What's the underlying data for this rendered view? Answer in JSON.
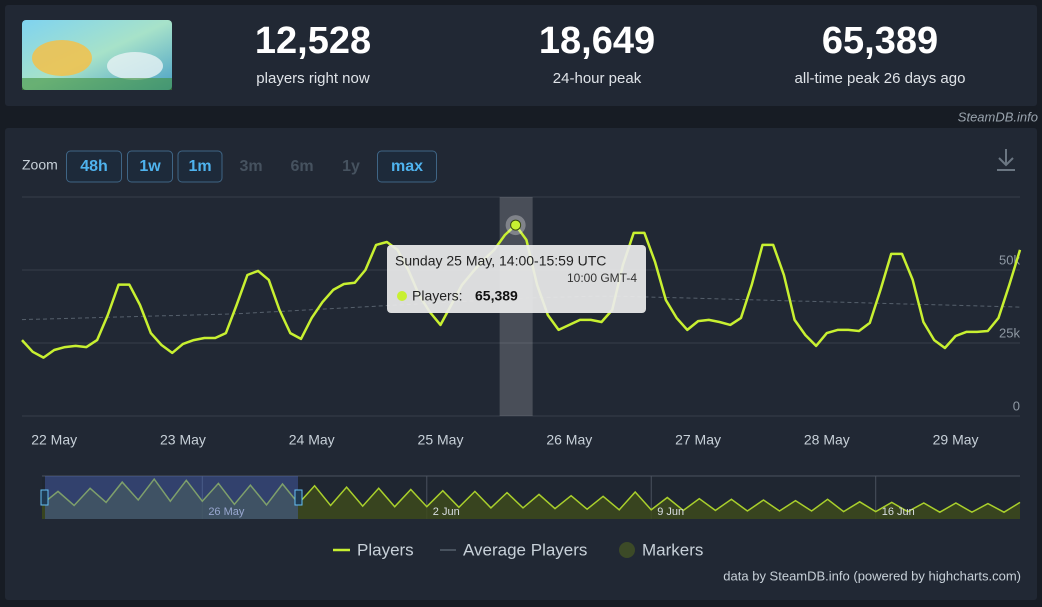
{
  "header": {
    "stats": [
      {
        "value": "12,528",
        "label": "players right now"
      },
      {
        "value": "18,649",
        "label": "24-hour peak"
      },
      {
        "value": "65,389",
        "label": "all-time peak 26 days ago"
      }
    ],
    "watermark": "SteamDB.info"
  },
  "zoom": {
    "label": "Zoom",
    "buttons": [
      {
        "text": "48h",
        "enabled": true
      },
      {
        "text": "1w",
        "enabled": true
      },
      {
        "text": "1m",
        "enabled": true
      },
      {
        "text": "3m",
        "enabled": false
      },
      {
        "text": "6m",
        "enabled": false
      },
      {
        "text": "1y",
        "enabled": false
      },
      {
        "text": "max",
        "enabled": true
      }
    ]
  },
  "chart_data": {
    "type": "line",
    "x": [
      null,
      null,
      null,
      "22 May",
      null,
      null,
      null,
      null,
      null,
      null,
      null,
      null,
      null,
      null,
      null,
      "23 May",
      null,
      null,
      null,
      null,
      null,
      null,
      null,
      null,
      null,
      null,
      null,
      "24 May",
      null,
      null,
      null,
      null,
      null,
      null,
      null,
      null,
      null,
      null,
      null,
      "25 May",
      null,
      null,
      null,
      null,
      null,
      null,
      null,
      null,
      null,
      null,
      null,
      "26 May",
      null,
      null,
      null,
      null,
      null,
      null,
      null,
      null,
      null,
      null,
      null,
      "27 May",
      null,
      null,
      null,
      null,
      null,
      null,
      null,
      null,
      null,
      null,
      null,
      "28 May",
      null,
      null,
      null,
      null,
      null,
      null,
      null,
      null,
      null,
      null,
      null,
      "29 May",
      null,
      null,
      null,
      null,
      null,
      null
    ],
    "series": [
      {
        "name": "Players",
        "color": "#c8f031",
        "values": [
          26000,
          22000,
          20000,
          22600,
          23600,
          24000,
          23600,
          26000,
          34600,
          45000,
          45000,
          38000,
          28400,
          24300,
          21600,
          24700,
          26000,
          26700,
          26700,
          28400,
          38000,
          48300,
          49700,
          46600,
          36300,
          28400,
          26400,
          33600,
          39000,
          43200,
          45200,
          45600,
          50000,
          58600,
          59600,
          56900,
          50000,
          41400,
          35600,
          31200,
          38000,
          44900,
          49300,
          53400,
          56900,
          62000,
          65389,
          60300,
          44900,
          34600,
          29500,
          31200,
          32900,
          32900,
          32200,
          36300,
          51700,
          62700,
          62700,
          52700,
          39700,
          33600,
          29500,
          32500,
          32900,
          32200,
          31200,
          33600,
          44900,
          58600,
          58600,
          48300,
          32900,
          27700,
          24000,
          28400,
          29500,
          29500,
          29100,
          31900,
          43200,
          55500,
          55500,
          46600,
          32200,
          26000,
          23300,
          27400,
          28800,
          28800,
          29100,
          33600,
          44900,
          56900
        ]
      },
      {
        "name": "Average Players",
        "color": "#56606c",
        "values": [
          33000,
          33100,
          33200,
          33300,
          33400,
          33500,
          33600,
          33700,
          33800,
          33900,
          34000,
          34100,
          34200,
          34300,
          34400,
          34500,
          34600,
          34700,
          34800,
          34900,
          35000,
          35200,
          35400,
          35600,
          35800,
          36000,
          36200,
          36400,
          36600,
          36800,
          37000,
          37200,
          37400,
          37600,
          37800,
          38000,
          38200,
          38400,
          38600,
          38800,
          39000,
          39200,
          39400,
          39600,
          39800,
          40000,
          40200,
          40400,
          40500,
          40600,
          40700,
          40800,
          40900,
          41000,
          41000,
          41000,
          41000,
          40900,
          40800,
          40700,
          40600,
          40500,
          40400,
          40300,
          40200,
          40100,
          40000,
          39900,
          39800,
          39700,
          39600,
          39500,
          39400,
          39300,
          39200,
          39100,
          39000,
          38900,
          38800,
          38700,
          38600,
          38500,
          38400,
          38300,
          38200,
          38100,
          38000,
          37900,
          37800,
          37700,
          37600,
          37500,
          37400,
          37300
        ]
      }
    ],
    "markers_legend": {
      "name": "Markers",
      "color": "#3c4a27"
    },
    "ylim": [
      0,
      75000
    ],
    "yticks": [
      0,
      {
        "value": 25000,
        "label": "25k"
      },
      {
        "value": 50000,
        "label": "50k"
      }
    ],
    "grid": true,
    "tooltip": {
      "title": "Sunday 25 May, 14:00-15:59 UTC",
      "local_time": "10:00 GMT-4",
      "label": "Players:",
      "value": "65,389"
    },
    "navigator": {
      "x": [
        null,
        null,
        null,
        null,
        null,
        null,
        null,
        null,
        null,
        null,
        "26 May",
        null,
        null,
        null,
        null,
        null,
        null,
        null,
        null,
        null,
        null,
        null,
        null,
        null,
        "2 Jun",
        null,
        null,
        null,
        null,
        null,
        null,
        null,
        null,
        null,
        null,
        null,
        null,
        null,
        "9 Jun",
        null,
        null,
        null,
        null,
        null,
        null,
        null,
        null,
        null,
        null,
        null,
        null,
        null,
        "16 Jun",
        null,
        null,
        null,
        null,
        null,
        null,
        null,
        null,
        null
      ],
      "values": [
        24000,
        45000,
        22000,
        50000,
        27000,
        60000,
        31000,
        65000,
        29000,
        63000,
        29000,
        58000,
        24000,
        55000,
        23000,
        57000,
        25000,
        54000,
        22000,
        52000,
        21000,
        50000,
        20000,
        48000,
        20000,
        46000,
        19000,
        45000,
        18000,
        43000,
        18000,
        40000,
        17000,
        38000,
        16000,
        37000,
        15000,
        44000,
        15000,
        35000,
        14000,
        33000,
        14000,
        32000,
        13000,
        31000,
        13000,
        30000,
        13000,
        32000,
        12000,
        28000,
        12000,
        27000,
        12000,
        26000,
        11000,
        26000,
        11000,
        25000,
        11000,
        27000
      ],
      "ylim": [
        0,
        70000
      ],
      "color": "#a9cf2c"
    },
    "credits": "data by SteamDB.info (powered by highcharts.com)"
  }
}
